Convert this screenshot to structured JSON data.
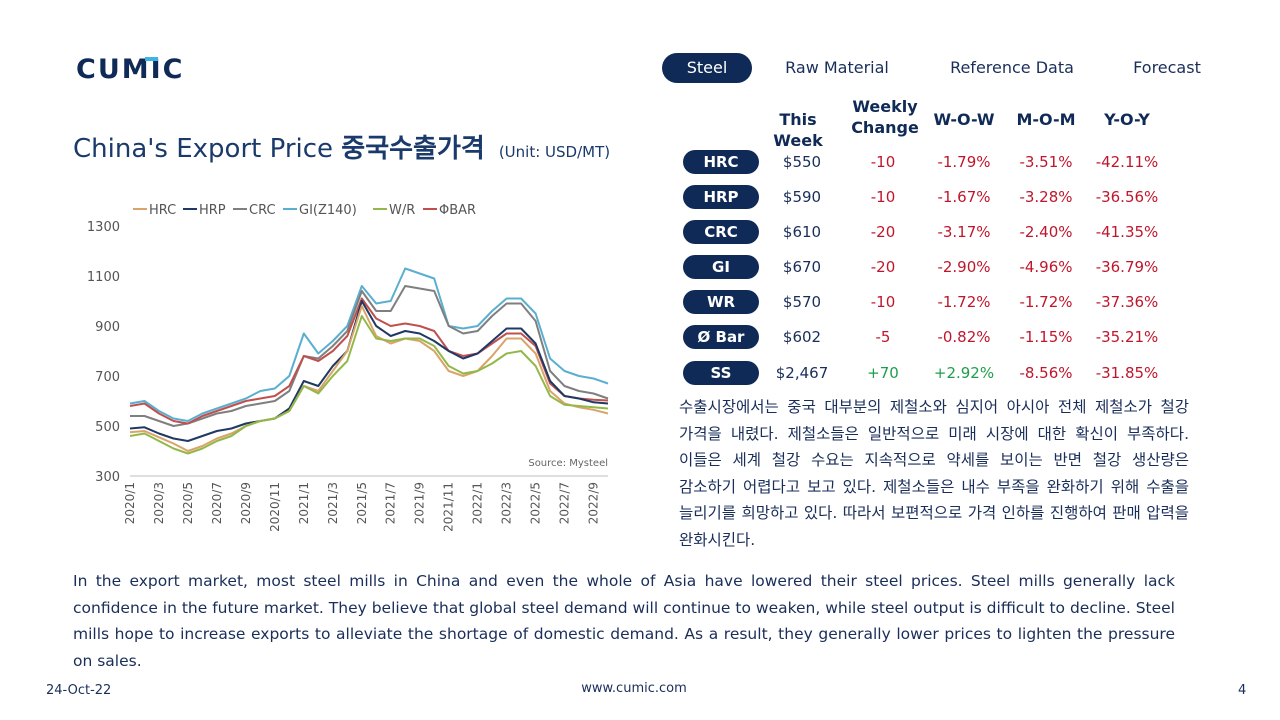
{
  "brand": {
    "logo_text": "CUMIC",
    "logo_color": "#0f2a56",
    "accent_color": "#3cb4e6"
  },
  "nav": {
    "tabs": [
      {
        "label": "Steel",
        "active": true
      },
      {
        "label": "Raw Material",
        "active": false
      },
      {
        "label": "Reference Data",
        "active": false
      },
      {
        "label": "Forecast",
        "active": false
      }
    ]
  },
  "title": {
    "main": "China's Export Price ",
    "korean": "중국수출가격",
    "unit": "(Unit: USD/MT)"
  },
  "table": {
    "headers": {
      "this_week": "This Week",
      "weekly_change": "Weekly Change",
      "wow": "W-O-W",
      "mom": "M-O-M",
      "yoy": "Y-O-Y"
    },
    "rows": [
      {
        "product": "HRC",
        "price": "$550",
        "change": "-10",
        "wow": "-1.79%",
        "mom": "-3.51%",
        "yoy": "-42.11%"
      },
      {
        "product": "HRP",
        "price": "$590",
        "change": "-10",
        "wow": "-1.67%",
        "mom": "-3.28%",
        "yoy": "-36.56%"
      },
      {
        "product": "CRC",
        "price": "$610",
        "change": "-20",
        "wow": "-3.17%",
        "mom": "-2.40%",
        "yoy": "-41.35%"
      },
      {
        "product": "GI",
        "price": "$670",
        "change": "-20",
        "wow": "-2.90%",
        "mom": "-4.96%",
        "yoy": "-36.79%"
      },
      {
        "product": "WR",
        "price": "$570",
        "change": "-10",
        "wow": "-1.72%",
        "mom": "-1.72%",
        "yoy": "-37.36%"
      },
      {
        "product": "Ø Bar",
        "price": "$602",
        "change": "-5",
        "wow": "-0.82%",
        "mom": "-1.15%",
        "yoy": "-35.21%"
      },
      {
        "product": "SS",
        "price": "$2,467",
        "change": "+70",
        "wow": "+2.92%",
        "mom": "-8.56%",
        "yoy": "-31.85%"
      }
    ],
    "colors": {
      "negative": "#c0162c",
      "positive": "#1e9e4a"
    }
  },
  "korean_text": "수출시장에서는 중국 대부분의 제철소와 심지어 아시아 전체 제철소가 철강 가격을 내렸다. 제철소들은 일반적으로 미래 시장에 대한 확신이 부족하다. 이들은 세계 철강 수요는 지속적으로 약세를 보이는 반면 철강 생산량은 감소하기 어렵다고 보고 있다. 제철소들은 내수 부족을 완화하기 위해 수출을 늘리기를 희망하고 있다. 따라서 보편적으로 가격 인하를 진행하여 판매 압력을 완화시킨다.",
  "english_text": "In the export market, most steel mills in China and even the whole of Asia have lowered their steel prices. Steel mills generally lack confidence in the future market. They believe that global steel demand will continue to weaken, while steel output is difficult to decline. Steel mills hope to increase exports to alleviate the shortage of domestic demand. As a result, they generally lower prices to lighten the pressure on sales.",
  "footer": {
    "date": "24-Oct-22",
    "url": "www.cumic.com",
    "page": "4"
  },
  "chart_data": {
    "type": "line",
    "x": [
      "2020/1",
      "2020/2",
      "2020/3",
      "2020/4",
      "2020/5",
      "2020/6",
      "2020/7",
      "2020/8",
      "2020/9",
      "2020/10",
      "2020/11",
      "2020/12",
      "2021/1",
      "2021/2",
      "2021/3",
      "2021/4",
      "2021/5",
      "2021/6",
      "2021/7",
      "2021/8",
      "2021/9",
      "2021/10",
      "2021/11",
      "2021/12",
      "2022/1",
      "2022/2",
      "2022/3",
      "2022/4",
      "2022/5",
      "2022/6",
      "2022/7",
      "2022/8",
      "2022/9",
      "2022/10"
    ],
    "x_tick_labels": [
      "2020/1",
      "2020/3",
      "2020/5",
      "2020/7",
      "2020/9",
      "2020/11",
      "2021/1",
      "2021/3",
      "2021/5",
      "2021/7",
      "2021/9",
      "2021/11",
      "2022/1",
      "2022/3",
      "2022/5",
      "2022/7",
      "2022/9"
    ],
    "ylim": [
      300,
      1300
    ],
    "y_ticks": [
      300,
      500,
      700,
      900,
      1100,
      1300
    ],
    "legend_position": "top",
    "source_note": "Source: Mysteel",
    "series": [
      {
        "name": "HRC",
        "color": "#d9a46a",
        "values": [
          475,
          480,
          455,
          430,
          400,
          420,
          450,
          470,
          500,
          520,
          530,
          560,
          660,
          640,
          720,
          800,
          980,
          860,
          830,
          850,
          840,
          800,
          720,
          700,
          720,
          780,
          850,
          850,
          790,
          640,
          590,
          575,
          565,
          550
        ]
      },
      {
        "name": "HRP",
        "color": "#1f3864",
        "values": [
          490,
          495,
          470,
          450,
          440,
          460,
          480,
          490,
          510,
          520,
          530,
          570,
          680,
          660,
          740,
          800,
          1000,
          900,
          860,
          880,
          870,
          840,
          800,
          770,
          790,
          840,
          890,
          890,
          830,
          680,
          620,
          610,
          595,
          590
        ]
      },
      {
        "name": "CRC",
        "color": "#7f7f7f",
        "values": [
          540,
          540,
          520,
          500,
          510,
          530,
          550,
          560,
          580,
          590,
          600,
          640,
          780,
          770,
          820,
          880,
          1040,
          960,
          960,
          1060,
          1050,
          1040,
          900,
          870,
          880,
          940,
          990,
          990,
          920,
          720,
          660,
          640,
          630,
          610
        ]
      },
      {
        "name": "GI(Z140)",
        "color": "#5aafd0",
        "values": [
          590,
          600,
          560,
          530,
          520,
          550,
          570,
          590,
          610,
          640,
          650,
          700,
          870,
          790,
          840,
          900,
          1060,
          990,
          1000,
          1130,
          1110,
          1090,
          900,
          890,
          900,
          960,
          1010,
          1010,
          950,
          770,
          720,
          700,
          690,
          670
        ]
      },
      {
        "name": "W/R",
        "color": "#93b849",
        "values": [
          460,
          470,
          440,
          410,
          390,
          410,
          440,
          460,
          500,
          520,
          530,
          560,
          660,
          630,
          700,
          760,
          940,
          850,
          840,
          850,
          850,
          820,
          740,
          710,
          720,
          750,
          790,
          800,
          740,
          620,
          585,
          580,
          575,
          570
        ]
      },
      {
        "name": "ΦBAR",
        "color": "#c0504d",
        "values": [
          580,
          590,
          550,
          520,
          510,
          540,
          560,
          580,
          600,
          610,
          620,
          660,
          780,
          760,
          800,
          860,
          1010,
          930,
          900,
          910,
          900,
          880,
          800,
          780,
          790,
          830,
          870,
          870,
          820,
          670,
          620,
          610,
          605,
          602
        ]
      }
    ]
  }
}
